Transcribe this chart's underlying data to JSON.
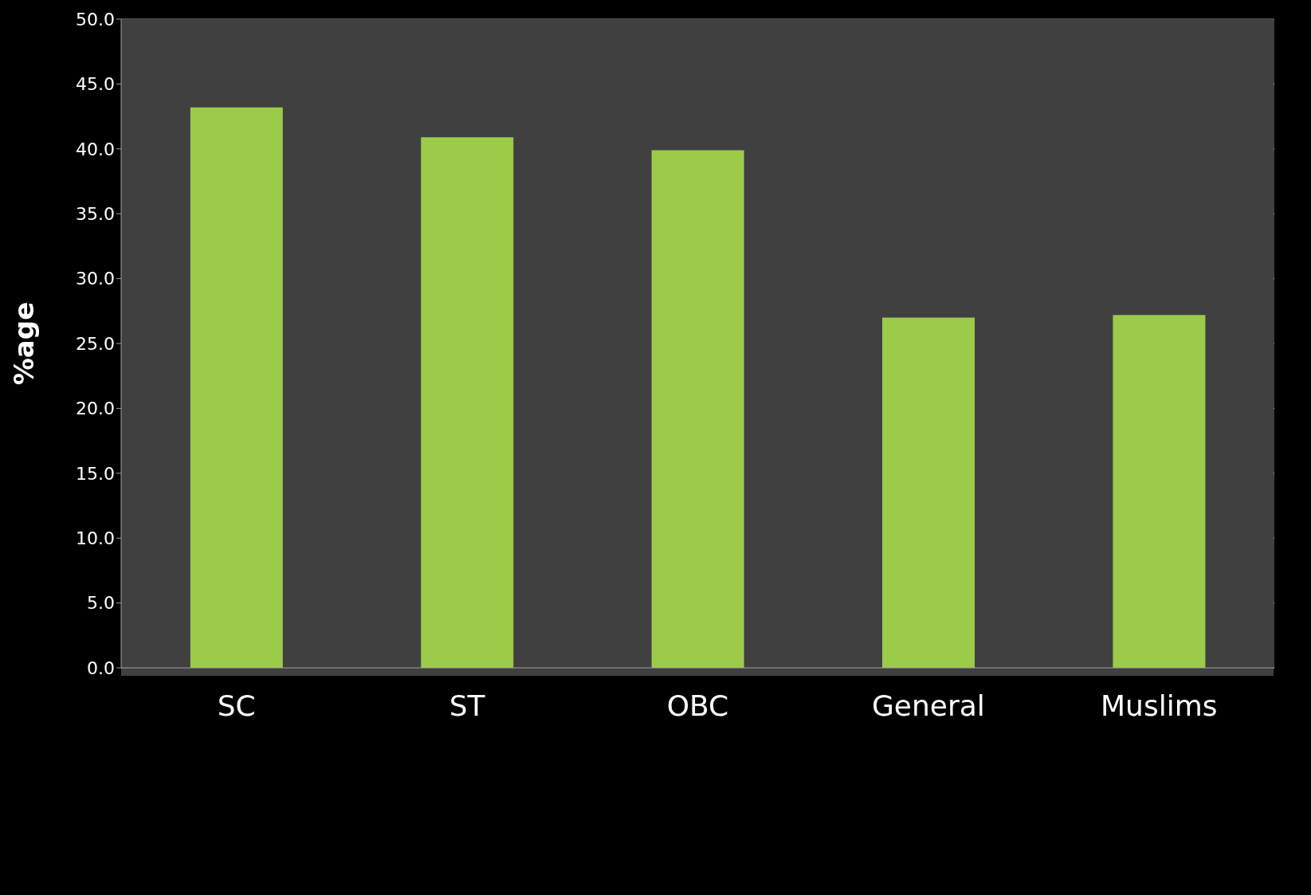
{
  "chart_data": {
    "type": "bar",
    "ylabel": "%age",
    "categories": [
      "SC",
      "ST",
      "OBC",
      "General",
      "Muslims"
    ],
    "values": [
      43.2,
      40.9,
      39.9,
      27.0,
      27.2
    ],
    "color": "#9ccb4a",
    "ylim": [
      0,
      50
    ],
    "yticks": [
      {
        "value": 0,
        "label": "0.0"
      },
      {
        "value": 5,
        "label": "5.0"
      },
      {
        "value": 10,
        "label": "10.0"
      },
      {
        "value": 15,
        "label": "15.0"
      },
      {
        "value": 20,
        "label": "20.0"
      },
      {
        "value": 25,
        "label": "25.0"
      },
      {
        "value": 30,
        "label": "30.0"
      },
      {
        "value": 35,
        "label": "35.0"
      },
      {
        "value": 40,
        "label": "40.0"
      },
      {
        "value": 45,
        "label": "45.0"
      },
      {
        "value": 50,
        "label": "50.0"
      }
    ],
    "grid": "y"
  }
}
